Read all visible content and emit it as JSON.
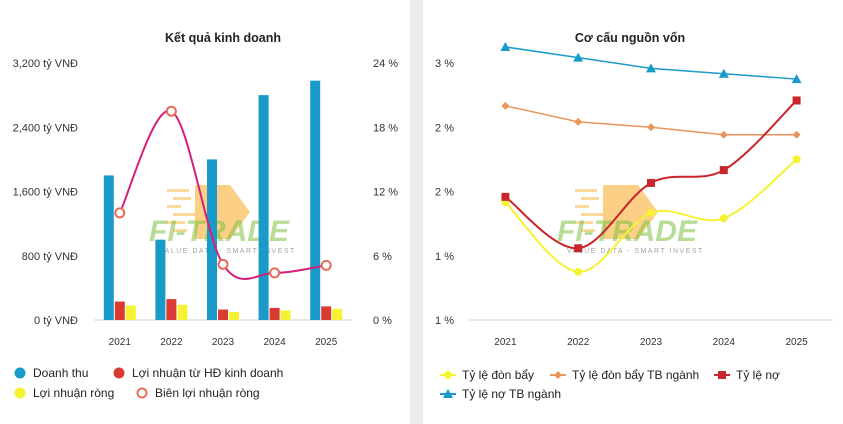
{
  "watermark": {
    "brand": "FI-TRADE",
    "tagline": "VALUE DATA - SMART INVEST"
  },
  "chart_data": [
    {
      "type": "bar",
      "title": "Kết quả kinh doanh",
      "categories": [
        "2021",
        "2022",
        "2023",
        "2024",
        "2025"
      ],
      "y_left": {
        "ticks": [
          "0 tỷ VNĐ",
          "800 tỷ VNĐ",
          "1,600 tỷ VNĐ",
          "2,400 tỷ VNĐ",
          "3,200 tỷ VNĐ"
        ],
        "ylim": [
          0,
          3200
        ]
      },
      "y_right": {
        "ticks": [
          "0 %",
          "6 %",
          "12 %",
          "18 %",
          "24 %"
        ],
        "ylim": [
          0,
          24
        ]
      },
      "series": [
        {
          "name": "Doanh thu",
          "kind": "bar",
          "axis": "left",
          "color": "#1a9ac9",
          "values": [
            1800,
            1000,
            2000,
            2800,
            2980
          ]
        },
        {
          "name": "Lợi nhuận từ HĐ kinh doanh",
          "kind": "bar",
          "axis": "left",
          "color": "#d93a32",
          "values": [
            230,
            260,
            130,
            150,
            170
          ]
        },
        {
          "name": "Lợi nhuận ròng",
          "kind": "bar",
          "axis": "left",
          "color": "#f5f233",
          "values": [
            180,
            190,
            100,
            120,
            140
          ]
        },
        {
          "name": "Biên lợi nhuận ròng",
          "kind": "line",
          "axis": "right",
          "color": "#e86c5c",
          "marker": "hollow-circle",
          "values": [
            10,
            19.5,
            5.2,
            4.4,
            5.1
          ]
        }
      ],
      "legend": [
        "Doanh thu",
        "Lợi nhuận từ HĐ kinh doanh",
        "Lợi nhuận ròng",
        "Biên lợi nhuận ròng"
      ]
    },
    {
      "type": "line",
      "title": "Cơ cấu nguồn vốn",
      "categories": [
        "2021",
        "2022",
        "2023",
        "2024",
        "2025"
      ],
      "y_left": {
        "ticks": [
          "1 %",
          "1 %",
          "2 %",
          "2 %",
          "3 %"
        ],
        "ylim": [
          0.6,
          3.0
        ]
      },
      "series": [
        {
          "name": "Tỷ lệ đòn bẩy",
          "color": "#f5f233",
          "marker": "circle",
          "values": [
            1.7,
            1.05,
            1.6,
            1.55,
            2.1
          ]
        },
        {
          "name": "Tỷ lệ đòn bẩy TB ngành",
          "color": "#e8955a",
          "marker": "diamond",
          "values": [
            2.6,
            2.45,
            2.4,
            2.33,
            2.33
          ]
        },
        {
          "name": "Tỷ lệ nợ",
          "color": "#c8262b",
          "marker": "square",
          "values": [
            1.75,
            1.27,
            1.88,
            2.0,
            2.65
          ]
        },
        {
          "name": "Tỷ lệ nợ TB ngành",
          "color": "#1a9ac9",
          "marker": "triangle",
          "values": [
            3.15,
            3.05,
            2.95,
            2.9,
            2.85
          ]
        }
      ],
      "legend": [
        "Tỷ lệ đòn bẩy",
        "Tỷ lệ đòn bẩy TB ngành",
        "Tỷ lệ nợ",
        "Tỷ lệ nợ TB ngành"
      ]
    }
  ]
}
